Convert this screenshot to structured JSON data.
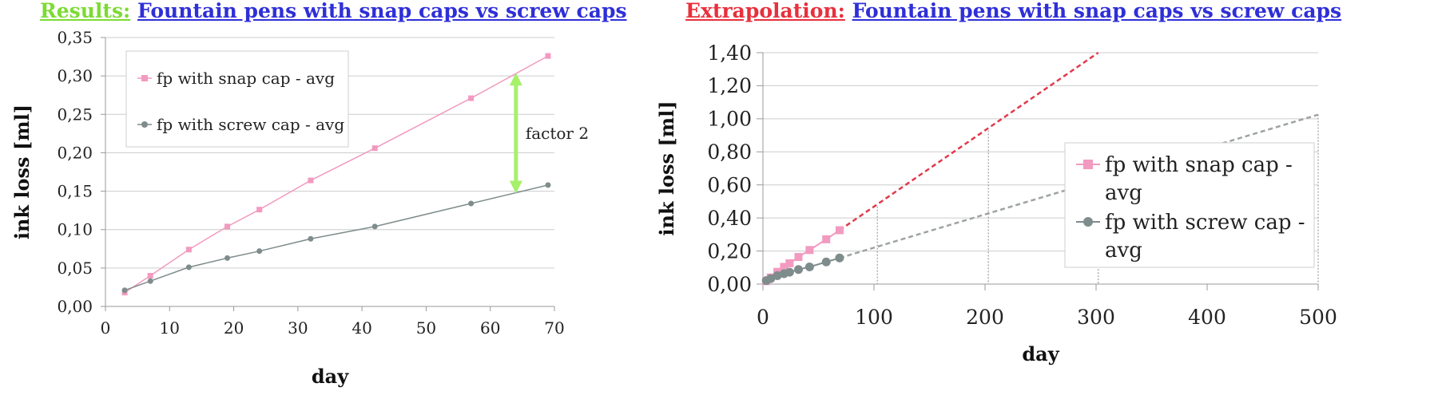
{
  "panels": [
    {
      "title_prefix": "Results:",
      "title_main": "Fountain pens with snap caps vs screw caps",
      "title_prefix_color": "#7CDB33",
      "title_main_color": "#2F2FD8",
      "xlabel": "day",
      "ylabel": "ink loss [ml]"
    },
    {
      "title_prefix": "Extrapolation:",
      "title_main": "Fountain pens with snap caps vs screw caps",
      "title_prefix_color": "#E8303C",
      "title_main_color": "#2F2FD8",
      "xlabel": "day",
      "ylabel": "ink loss [ml]"
    }
  ],
  "chart_data": [
    {
      "type": "line",
      "xlim": [
        0,
        70
      ],
      "ylim": [
        0,
        0.35
      ],
      "x_ticks": [
        0,
        10,
        20,
        30,
        40,
        50,
        60,
        70
      ],
      "x_tick_labels": [
        "0",
        "10",
        "20",
        "30",
        "40",
        "50",
        "60",
        "70"
      ],
      "y_ticks": [
        0,
        0.05,
        0.1,
        0.15,
        0.2,
        0.25,
        0.3,
        0.35
      ],
      "y_tick_labels": [
        "0,00",
        "0,05",
        "0,10",
        "0,15",
        "0,20",
        "0,25",
        "0,30",
        "0,35"
      ],
      "grid": "horizontal",
      "legend": "top-left",
      "x": [
        3,
        7,
        13,
        19,
        24,
        32,
        42,
        57,
        69
      ],
      "series": [
        {
          "name": "fp with snap cap - avg",
          "marker": "square",
          "color": "#F29AC0",
          "values": [
            0.018,
            0.04,
            0.074,
            0.104,
            0.126,
            0.164,
            0.206,
            0.271,
            0.326
          ]
        },
        {
          "name": "fp with screw cap - avg",
          "marker": "circle",
          "color": "#7F8C8C",
          "values": [
            0.021,
            0.033,
            0.051,
            0.063,
            0.072,
            0.088,
            0.104,
            0.134,
            0.158
          ]
        }
      ],
      "annotation": {
        "text": "factor 2",
        "x": 64,
        "y_from": 0.147,
        "y_to": 0.304,
        "color": "#A6F06A"
      }
    },
    {
      "type": "line",
      "xlim": [
        0,
        500
      ],
      "ylim": [
        0,
        1.4
      ],
      "x_ticks": [
        0,
        100,
        200,
        300,
        400,
        500
      ],
      "x_tick_labels": [
        "0",
        "100",
        "200",
        "300",
        "400",
        "500"
      ],
      "y_ticks": [
        0,
        0.2,
        0.4,
        0.6,
        0.8,
        1.0,
        1.2,
        1.4
      ],
      "y_tick_labels": [
        "0,00",
        "0,20",
        "0,40",
        "0,60",
        "0,80",
        "1,00",
        "1,20",
        "1,40"
      ],
      "grid": "horizontal",
      "legend": "center-right",
      "x": [
        3,
        7,
        13,
        19,
        24,
        32,
        42,
        57,
        69
      ],
      "series": [
        {
          "name": "fp with snap cap - avg",
          "marker": "square",
          "color": "#F29AC0",
          "values": [
            0.018,
            0.04,
            0.074,
            0.104,
            0.126,
            0.164,
            0.206,
            0.271,
            0.326
          ]
        },
        {
          "name": "fp with screw cap - avg",
          "marker": "circle",
          "color": "#7F8C8C",
          "values": [
            0.021,
            0.033,
            0.051,
            0.063,
            0.072,
            0.088,
            0.104,
            0.134,
            0.158
          ]
        }
      ],
      "trendlines": [
        {
          "series": "fp with snap cap - avg",
          "style": "dashed",
          "color": "#E03A4C",
          "x": [
            69,
            302
          ],
          "y": [
            0.326,
            1.4
          ]
        },
        {
          "series": "fp with screw cap - avg",
          "style": "dashed",
          "color": "#9EA3A3",
          "x": [
            69,
            500
          ],
          "y": [
            0.158,
            1.025
          ]
        }
      ],
      "drop_lines": [
        {
          "x": 103,
          "y": 0.47
        },
        {
          "x": 203,
          "y": 0.93
        },
        {
          "x": 302,
          "y": 0.13
        },
        {
          "x": 500,
          "y": 1.025
        }
      ]
    }
  ]
}
